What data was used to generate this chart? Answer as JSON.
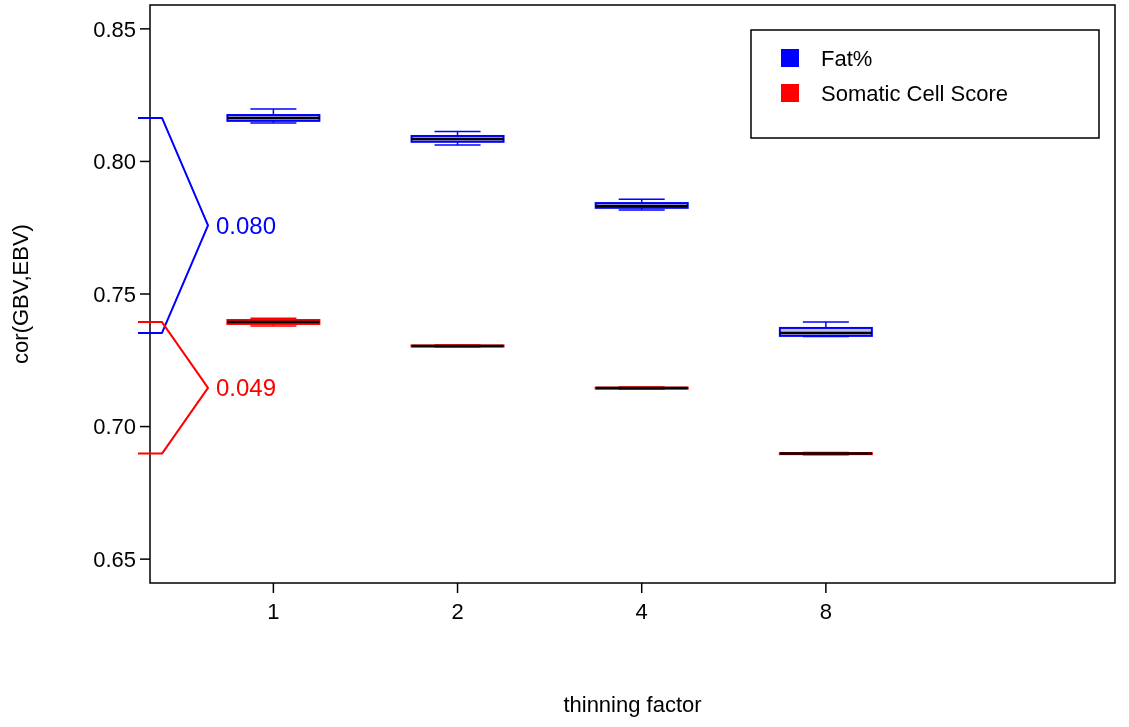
{
  "chart_data": {
    "type": "box",
    "xlabel": "thinning factor",
    "ylabel": "cor(GBV,EBV)",
    "categories": [
      "1",
      "2",
      "4",
      "8"
    ],
    "ylim": [
      0.641,
      0.859
    ],
    "yticks": [
      0.65,
      {
        "value": 0.7,
        "label": "0.70"
      },
      0.75,
      {
        "value": 0.8,
        "label": "0.80"
      },
      0.85
    ],
    "legend": "top right",
    "series": [
      {
        "name": "Fat%",
        "color": "#0000ff",
        "boxes": [
          {
            "low": 0.8145,
            "q1": 0.8153,
            "median": 0.8164,
            "q3": 0.8175,
            "high": 0.8198
          },
          {
            "low": 0.8062,
            "q1": 0.8074,
            "median": 0.8085,
            "q3": 0.8096,
            "high": 0.8113
          },
          {
            "low": 0.7817,
            "q1": 0.7825,
            "median": 0.7832,
            "q3": 0.7843,
            "high": 0.7857
          },
          {
            "low": 0.734,
            "q1": 0.7342,
            "median": 0.7353,
            "q3": 0.7372,
            "high": 0.7394
          }
        ]
      },
      {
        "name": "Somatic Cell Score",
        "color": "#ff0000",
        "boxes": [
          {
            "low": 0.7379,
            "q1": 0.7387,
            "median": 0.7394,
            "q3": 0.7402,
            "high": 0.7409
          },
          {
            "low": 0.73,
            "q1": 0.7302,
            "median": 0.7304,
            "q3": 0.7306,
            "high": 0.7308
          },
          {
            "low": 0.7141,
            "q1": 0.7143,
            "median": 0.7145,
            "q3": 0.7147,
            "high": 0.7149
          },
          {
            "low": 0.6894,
            "q1": 0.6896,
            "median": 0.6898,
            "q3": 0.69,
            "high": 0.6902
          }
        ]
      }
    ],
    "annotations": [
      "0.080",
      "0.049"
    ]
  }
}
